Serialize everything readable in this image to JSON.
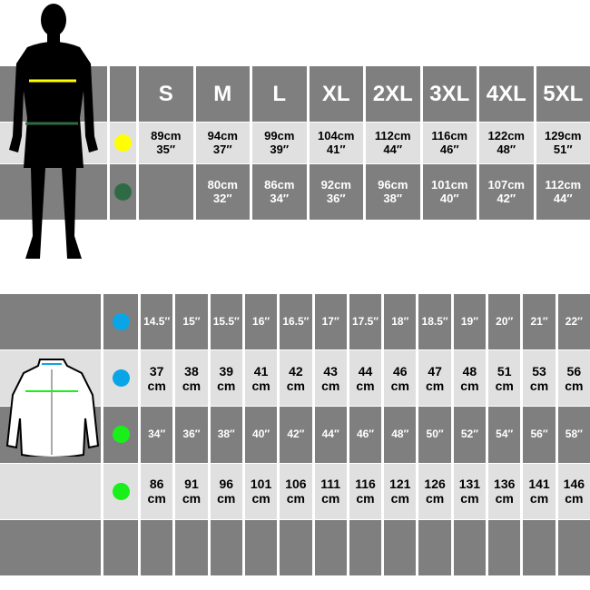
{
  "top_table": {
    "sizes": [
      "S",
      "M",
      "L",
      "XL",
      "2XL",
      "3XL",
      "4XL",
      "5XL"
    ],
    "chest": {
      "color": "#ffff00",
      "values": [
        [
          "89cm",
          "35″"
        ],
        [
          "94cm",
          "37″"
        ],
        [
          "99cm",
          "39″"
        ],
        [
          "104cm",
          "41″"
        ],
        [
          "112cm",
          "44″"
        ],
        [
          "116cm",
          "46″"
        ],
        [
          "122cm",
          "48″"
        ],
        [
          "129cm",
          "51″"
        ]
      ]
    },
    "waist": {
      "color": "#2e6b45",
      "values": [
        [
          "",
          ""
        ],
        [
          "80cm",
          "32″"
        ],
        [
          "86cm",
          "34″"
        ],
        [
          "92cm",
          "36″"
        ],
        [
          "96cm",
          "38″"
        ],
        [
          "101cm",
          "40″"
        ],
        [
          "107cm",
          "42″"
        ],
        [
          "112cm",
          "44″"
        ]
      ]
    }
  },
  "bottom_table": {
    "collar_in": {
      "color": "#0aa5e6",
      "values": [
        "14.5″",
        "15″",
        "15.5″",
        "16″",
        "16.5″",
        "17″",
        "17.5″",
        "18″",
        "18.5″",
        "19″",
        "20″",
        "21″",
        "22″"
      ]
    },
    "collar_cm": {
      "color": "#0aa5e6",
      "values": [
        [
          "37",
          "cm"
        ],
        [
          "38",
          "cm"
        ],
        [
          "39",
          "cm"
        ],
        [
          "41",
          "cm"
        ],
        [
          "42",
          "cm"
        ],
        [
          "43",
          "cm"
        ],
        [
          "44",
          "cm"
        ],
        [
          "46",
          "cm"
        ],
        [
          "47",
          "cm"
        ],
        [
          "48",
          "cm"
        ],
        [
          "51",
          "cm"
        ],
        [
          "53",
          "cm"
        ],
        [
          "56",
          "cm"
        ]
      ]
    },
    "chest_in": {
      "color": "#19f019",
      "values": [
        "34″",
        "36″",
        "38″",
        "40″",
        "42″",
        "44″",
        "46″",
        "48″",
        "50″",
        "52″",
        "54″",
        "56″",
        "58″"
      ]
    },
    "chest_cm": {
      "color": "#19f019",
      "values": [
        [
          "86",
          "cm"
        ],
        [
          "91",
          "cm"
        ],
        [
          "96",
          "cm"
        ],
        [
          "101",
          "cm"
        ],
        [
          "106",
          "cm"
        ],
        [
          "111",
          "cm"
        ],
        [
          "116",
          "cm"
        ],
        [
          "121",
          "cm"
        ],
        [
          "126",
          "cm"
        ],
        [
          "131",
          "cm"
        ],
        [
          "136",
          "cm"
        ],
        [
          "141",
          "cm"
        ],
        [
          "146",
          "cm"
        ]
      ]
    }
  }
}
